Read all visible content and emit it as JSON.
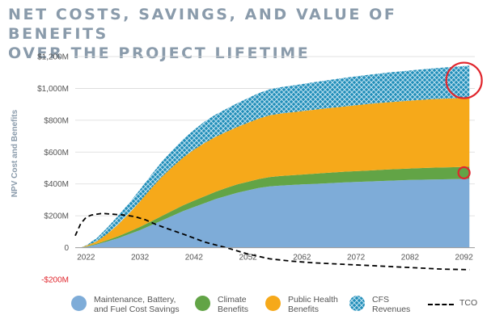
{
  "title_lines": [
    "NET COSTS, SAVINGS, AND VALUE OF BENEFITS",
    "OVER THE PROJECT LIFETIME"
  ],
  "colors": {
    "maintenance": "#7eacd8",
    "climate": "#62a446",
    "health": "#f6a91a",
    "cfs": "#1f8db8",
    "cfs_pattern": "#bde1f0",
    "tco": "#000000",
    "highlight_circle": "#e0262d",
    "negative_tick": "#e0262d",
    "axis_text": "#555555",
    "ylabel": "#8a9bab",
    "title": "#8a9bab"
  },
  "legend": [
    {
      "key": "maintenance",
      "label": "Maintenance, Battery,\nand Fuel Cost Savings",
      "icon": "circle-swatch"
    },
    {
      "key": "climate",
      "label": "Climate\nBenefits",
      "icon": "circle-swatch"
    },
    {
      "key": "health",
      "label": "Public Health\nBenefits",
      "icon": "circle-swatch"
    },
    {
      "key": "cfs",
      "label": "CFS\nRevenues",
      "icon": "circle-swatch-crosshatch"
    },
    {
      "key": "tco",
      "label": "TCO",
      "icon": "dashed-line"
    }
  ],
  "chart_data": {
    "type": "area",
    "stacked": true,
    "title": "NET COSTS, SAVINGS, AND VALUE OF BENEFITS OVER THE PROJECT LIFETIME",
    "xlabel": "",
    "ylabel": "NPV Cost and Benefits",
    "xlim": [
      2020,
      2094
    ],
    "ylim": [
      -200,
      1200
    ],
    "x_ticks": [
      2022,
      2032,
      2042,
      2052,
      2062,
      2072,
      2082,
      2092
    ],
    "y_ticks": [
      -200,
      0,
      200,
      400,
      600,
      800,
      1000,
      1200
    ],
    "y_tick_labels": [
      "-$200M",
      "0",
      "$200M",
      "$400M",
      "$600M",
      "$800M",
      "$1,000M",
      "$1,200M"
    ],
    "grid": "horizontal",
    "legend_position": "bottom",
    "x": [
      2021,
      2022,
      2024,
      2026,
      2028,
      2030,
      2032,
      2034,
      2036,
      2038,
      2040,
      2042,
      2044,
      2046,
      2048,
      2050,
      2052,
      2054,
      2056,
      2058,
      2062,
      2066,
      2070,
      2074,
      2078,
      2082,
      2086,
      2090,
      2093
    ],
    "series": [
      {
        "name": "Maintenance, Battery, and Fuel Cost Savings",
        "values": [
          0,
          5,
          20,
          40,
          60,
          85,
          110,
          140,
          170,
          200,
          230,
          255,
          280,
          305,
          325,
          345,
          360,
          375,
          385,
          390,
          397,
          403,
          410,
          415,
          420,
          425,
          428,
          430,
          432
        ]
      },
      {
        "name": "Climate Benefits",
        "values": [
          0,
          2,
          5,
          8,
          12,
          16,
          20,
          24,
          28,
          32,
          36,
          40,
          43,
          46,
          50,
          52,
          54,
          56,
          58,
          60,
          62,
          65,
          67,
          69,
          71,
          72,
          74,
          75,
          76
        ]
      },
      {
        "name": "Public Health Benefits",
        "values": [
          0,
          5,
          15,
          40,
          75,
          115,
          160,
          205,
          245,
          275,
          300,
          320,
          335,
          345,
          352,
          360,
          370,
          380,
          388,
          392,
          398,
          405,
          410,
          417,
          422,
          426,
          430,
          433,
          435
        ]
      },
      {
        "name": "CFS Revenues",
        "values": [
          0,
          3,
          20,
          40,
          55,
          65,
          75,
          85,
          95,
          105,
          115,
          125,
          135,
          140,
          145,
          150,
          155,
          160,
          163,
          165,
          170,
          175,
          180,
          183,
          187,
          190,
          193,
          197,
          200
        ]
      },
      {
        "name": "TCO",
        "line": true,
        "x": [
          2020,
          2021,
          2022,
          2023,
          2025,
          2027,
          2029,
          2031,
          2033,
          2035,
          2037,
          2040,
          2044,
          2048,
          2052,
          2056,
          2060,
          2064,
          2070,
          2076,
          2082,
          2088,
          2093
        ],
        "values": [
          75,
          150,
          190,
          205,
          215,
          210,
          205,
          195,
          175,
          145,
          120,
          85,
          35,
          0,
          -40,
          -70,
          -85,
          -95,
          -105,
          -115,
          -125,
          -135,
          -138
        ]
      }
    ],
    "annotations": [
      {
        "shape": "circle",
        "at": [
          2092,
          1050
        ],
        "size": "large"
      },
      {
        "shape": "circle",
        "at": [
          2092,
          470
        ],
        "size": "small"
      }
    ]
  }
}
